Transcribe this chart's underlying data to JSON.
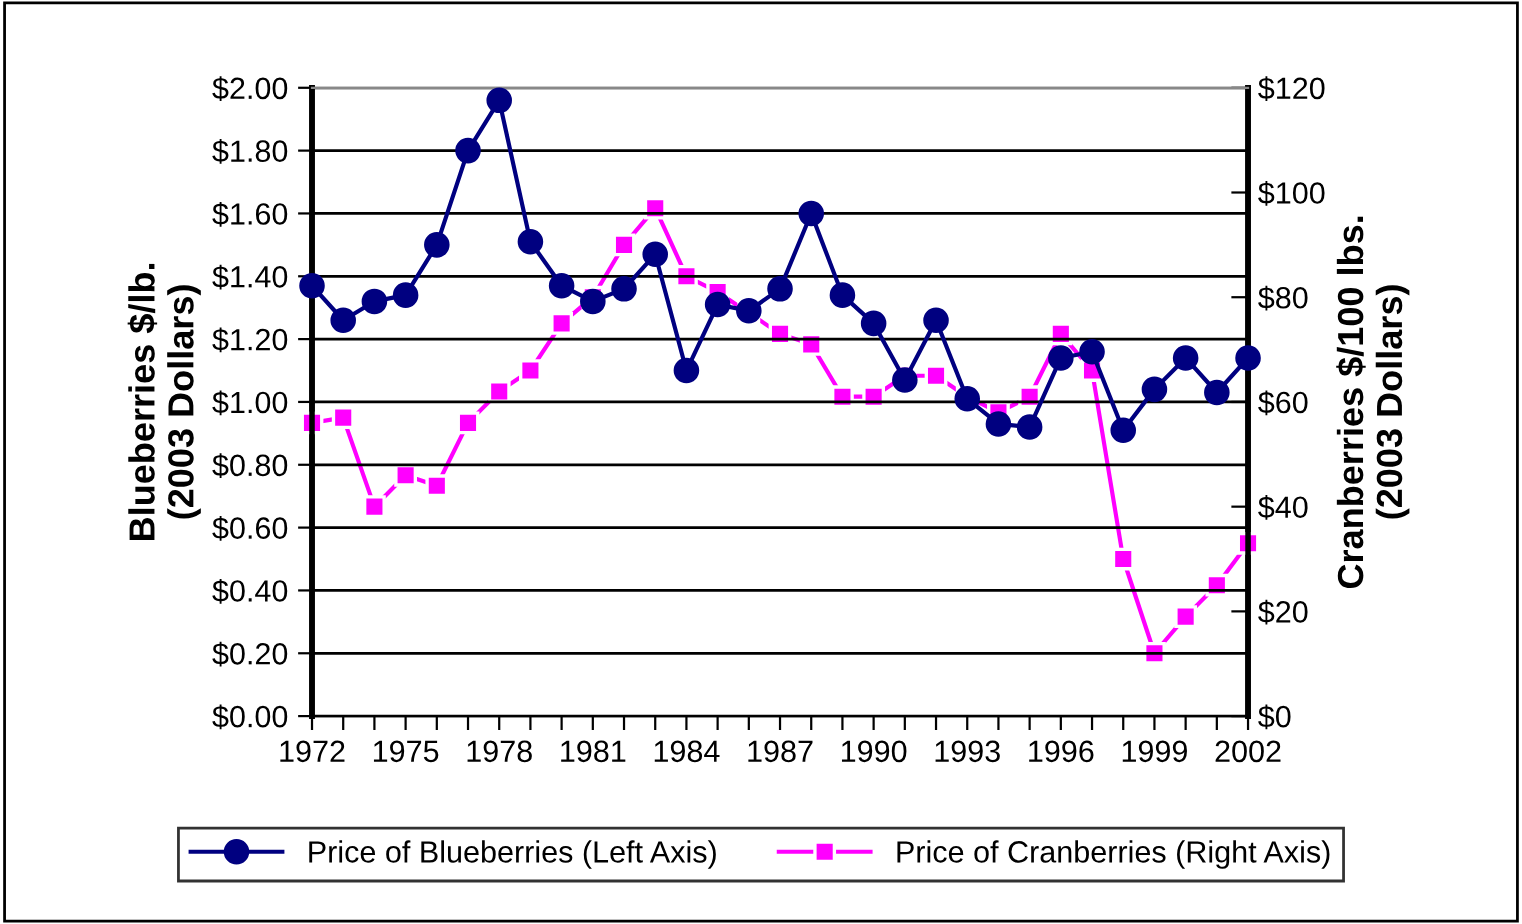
{
  "chart_data": {
    "type": "line",
    "categories": [
      "1972",
      null,
      null,
      "1975",
      null,
      null,
      "1978",
      null,
      null,
      "1981",
      null,
      null,
      "1984",
      null,
      null,
      "1987",
      null,
      null,
      "1990",
      null,
      null,
      "1993",
      null,
      null,
      "1996",
      null,
      null,
      "1999",
      null,
      null,
      "2002"
    ],
    "ylabel": "Blueberries $/lb.\n(2003 Dollars)",
    "y2label": "Cranberries $/100 lbs.\n(2003 Dollars)",
    "series": [
      {
        "name": "Price of Blueberries (Left Axis)",
        "color": "#000080",
        "marker": "circle",
        "values": [
          1.37,
          1.26,
          1.32,
          1.34,
          1.5,
          1.8,
          1.96,
          1.51,
          1.37,
          1.32,
          1.36,
          1.47,
          1.1,
          1.31,
          1.29,
          1.36,
          1.6,
          1.34,
          1.25,
          1.07,
          1.26,
          1.01,
          0.93,
          0.92,
          1.14,
          1.16,
          0.91,
          1.04,
          1.14,
          1.03,
          1.14
        ]
      },
      {
        "name": "Price of Cranberries (Right Axis)",
        "color": "#ff00ff",
        "marker": "square",
        "axis": "y2",
        "values": [
          56,
          57,
          40,
          46,
          44,
          56,
          62,
          66,
          75,
          80,
          90,
          97,
          84,
          81,
          77,
          73,
          71,
          61,
          61,
          65,
          65,
          61,
          58,
          61,
          73,
          66,
          30,
          12,
          19,
          25,
          33
        ]
      }
    ],
    "ylim": [
      0,
      2
    ],
    "yticks": [
      {
        "value": 0,
        "label": "$0.00"
      },
      {
        "value": 0.2,
        "label": "$0.20"
      },
      {
        "value": 0.4,
        "label": "$0.40"
      },
      {
        "value": 0.6,
        "label": "$0.60"
      },
      {
        "value": 0.8,
        "label": "$0.80"
      },
      {
        "value": 1.0,
        "label": "$1.00"
      },
      {
        "value": 1.2,
        "label": "$1.20"
      },
      {
        "value": 1.4,
        "label": "$1.40"
      },
      {
        "value": 1.6,
        "label": "$1.60"
      },
      {
        "value": 1.8,
        "label": "$1.80"
      },
      {
        "value": 2.0,
        "label": "$2.00"
      }
    ],
    "y2lim": [
      0,
      120
    ],
    "y2ticks": [
      {
        "value": 0,
        "label": "$0"
      },
      {
        "value": 20,
        "label": "$20"
      },
      {
        "value": 40,
        "label": "$40"
      },
      {
        "value": 60,
        "label": "$60"
      },
      {
        "value": 80,
        "label": "$80"
      },
      {
        "value": 100,
        "label": "$100"
      },
      {
        "value": 120,
        "label": "$120"
      }
    ],
    "grid": "y",
    "legend": "bottom",
    "line_style": "solid"
  }
}
